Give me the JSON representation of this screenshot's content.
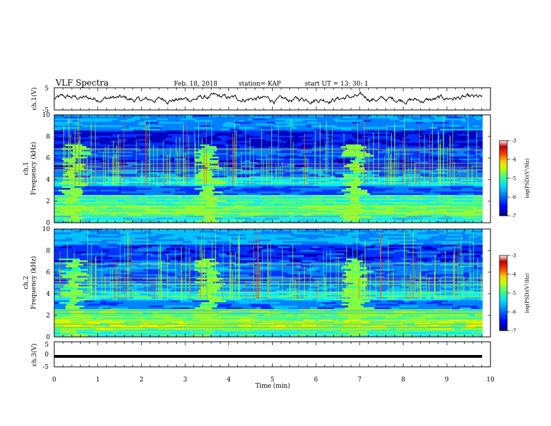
{
  "header": {
    "title": "VLF Spectra",
    "date": "Feb. 18, 2018",
    "station": "station= KAP",
    "start_ut": "start  UT =   13: 30: 1"
  },
  "colors": {
    "trace": "#000000",
    "colormap": [
      "#000080",
      "#0000ff",
      "#0080ff",
      "#00e0ff",
      "#40ff80",
      "#c0ff00",
      "#ffd000",
      "#ff4000",
      "#c00000",
      "#ffffff"
    ]
  },
  "chart_data": [
    {
      "type": "line",
      "panel": "ch1-waveform",
      "ylabel": "ch.1(V)",
      "ylim": [
        -5,
        5
      ],
      "yticks": [
        "5",
        "-5"
      ],
      "xlim": [
        0,
        10
      ],
      "description": "noisy waveform fluctuating roughly between -2 and 2"
    },
    {
      "type": "heatmap",
      "panel": "ch1-spectrogram",
      "ylabel": "ch.1",
      "ylabel2": "Frequency  (kHz)",
      "ylim": [
        0,
        10
      ],
      "yticks": [
        "0",
        "2",
        "4",
        "6",
        "8",
        "10"
      ],
      "xlim": [
        0,
        10
      ],
      "colorbar": {
        "label": "log(PSD)(V²/Hz)",
        "range": [
          -7,
          -3
        ],
        "ticks": [
          "-3",
          "-4",
          "-5",
          "-6",
          "-7"
        ]
      }
    },
    {
      "type": "heatmap",
      "panel": "ch2-spectrogram",
      "ylabel": "ch.2",
      "ylabel2": "Frequency  (kHz)",
      "ylim": [
        0,
        10
      ],
      "yticks": [
        "0",
        "2",
        "4",
        "6",
        "8",
        "10"
      ],
      "xlim": [
        0,
        10
      ],
      "colorbar": {
        "label": "log(PSD)(V²/Hz)",
        "range": [
          -7,
          -3
        ],
        "ticks": [
          "-3",
          "-4",
          "-5",
          "-6",
          "-7"
        ]
      }
    },
    {
      "type": "line",
      "panel": "ch3-waveform",
      "ylabel": "ch.3(V)",
      "ylim": [
        -5,
        5
      ],
      "yticks": [
        "5",
        "0",
        "-5"
      ],
      "xlim": [
        0,
        10
      ],
      "description": "flat thick trace near -1.5 V"
    }
  ],
  "xaxis": {
    "label": "Time  (min)",
    "ticks": [
      "0",
      "1",
      "2",
      "3",
      "4",
      "5",
      "6",
      "7",
      "8",
      "9",
      "10"
    ]
  }
}
